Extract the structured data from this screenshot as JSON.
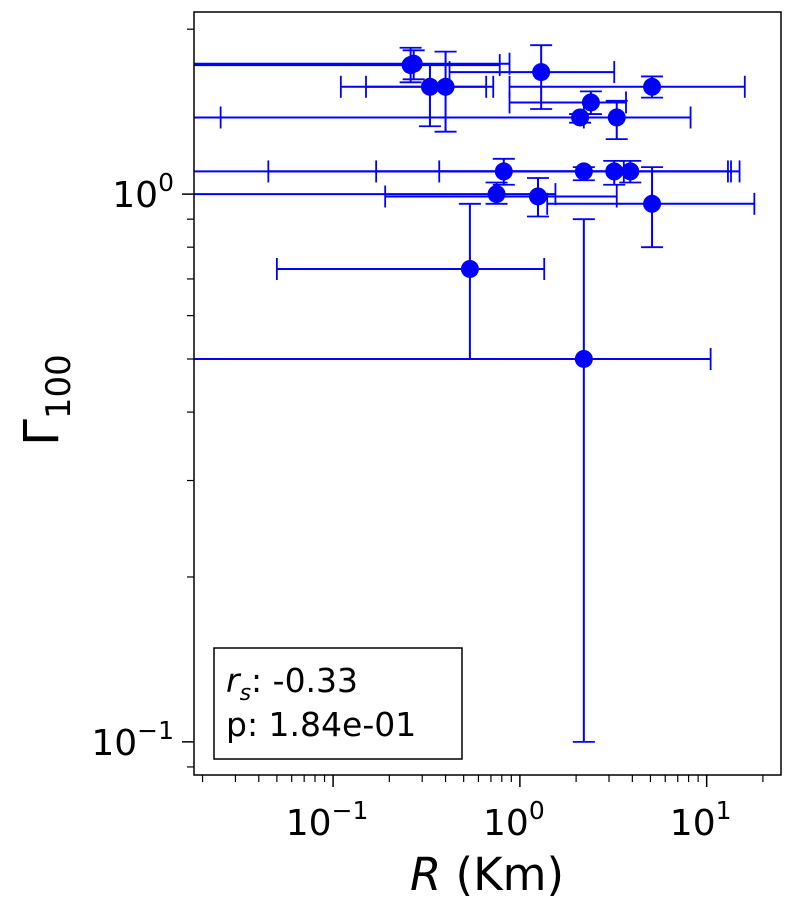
{
  "chart_data": {
    "type": "scatter",
    "x_scale": "log",
    "y_scale": "log",
    "xlim": [
      0.018,
      25
    ],
    "ylim": [
      0.087,
      2.15
    ],
    "grid": false,
    "xlabel": {
      "italic": "R",
      "rest": " (Km)"
    },
    "ylabel": {
      "base": "Γ",
      "sub": "100"
    },
    "x_ticks": [
      {
        "value": 0.1,
        "base": "10",
        "exp": "−1"
      },
      {
        "value": 1,
        "base": "10",
        "exp": "0"
      },
      {
        "value": 10,
        "base": "10",
        "exp": "1"
      }
    ],
    "y_ticks": [
      {
        "value": 0.1,
        "base": "10",
        "exp": "−1"
      },
      {
        "value": 1,
        "base": "10",
        "exp": "0"
      }
    ],
    "marker_color": "#0000ff",
    "points": [
      {
        "x": 0.26,
        "y": 1.72,
        "xlo": 0.015,
        "xhi": 0.78,
        "ylo": 1.6,
        "yhi": 1.85
      },
      {
        "x": 0.27,
        "y": 1.73,
        "xlo": 0.015,
        "xhi": 0.88,
        "ylo": 1.62,
        "yhi": 1.83
      },
      {
        "x": 1.3,
        "y": 1.67,
        "xlo": 0.42,
        "xhi": 3.2,
        "ylo": 1.43,
        "yhi": 1.87
      },
      {
        "x": 0.33,
        "y": 1.57,
        "xlo": 0.11,
        "xhi": 0.66,
        "ylo": 1.33,
        "yhi": 1.72
      },
      {
        "x": 0.4,
        "y": 1.57,
        "xlo": 0.15,
        "xhi": 0.72,
        "ylo": 1.3,
        "yhi": 1.82
      },
      {
        "x": 5.1,
        "y": 1.57,
        "xlo": 0.88,
        "xhi": 16,
        "ylo": 1.5,
        "yhi": 1.64
      },
      {
        "x": 2.4,
        "y": 1.47,
        "xlo": 0.88,
        "xhi": 3.7,
        "ylo": 1.4,
        "yhi": 1.54
      },
      {
        "x": 2.1,
        "y": 1.38,
        "xlo": 0.015,
        "xhi": 2.2,
        "ylo": 1.35,
        "yhi": 1.4
      },
      {
        "x": 3.3,
        "y": 1.38,
        "xlo": 0.025,
        "xhi": 8.2,
        "ylo": 1.26,
        "yhi": 1.48
      },
      {
        "x": 0.82,
        "y": 1.1,
        "xlo": 0.045,
        "xhi": 3.6,
        "ylo": 1.04,
        "yhi": 1.16
      },
      {
        "x": 2.2,
        "y": 1.1,
        "xlo": 0.17,
        "xhi": 13.5,
        "ylo": 1.06,
        "yhi": 1.12
      },
      {
        "x": 3.2,
        "y": 1.1,
        "xlo": 0.015,
        "xhi": 15,
        "ylo": 1.04,
        "yhi": 1.15
      },
      {
        "x": 3.9,
        "y": 1.1,
        "xlo": 0.37,
        "xhi": 13,
        "ylo": 1.05,
        "yhi": 1.15
      },
      {
        "x": 0.75,
        "y": 1.0,
        "xlo": 0.015,
        "xhi": 1.55,
        "ylo": 0.96,
        "yhi": 1.05
      },
      {
        "x": 1.25,
        "y": 0.99,
        "xlo": 0.19,
        "xhi": 3.3,
        "ylo": 0.91,
        "yhi": 1.07
      },
      {
        "x": 5.1,
        "y": 0.96,
        "xlo": 1.4,
        "xhi": 18,
        "ylo": 0.8,
        "yhi": 1.12
      },
      {
        "x": 0.54,
        "y": 0.73,
        "xlo": 0.05,
        "xhi": 1.35,
        "ylo": 0.5,
        "yhi": 0.96
      },
      {
        "x": 2.2,
        "y": 0.5,
        "xlo": 0.015,
        "xhi": 10.5,
        "ylo": 0.1,
        "yhi": 0.9
      }
    ],
    "annotation": {
      "rs_symbol": "r",
      "rs_sub": "s",
      "rs_value": ": -0.33",
      "p_line": "p: 1.84e-01"
    }
  }
}
